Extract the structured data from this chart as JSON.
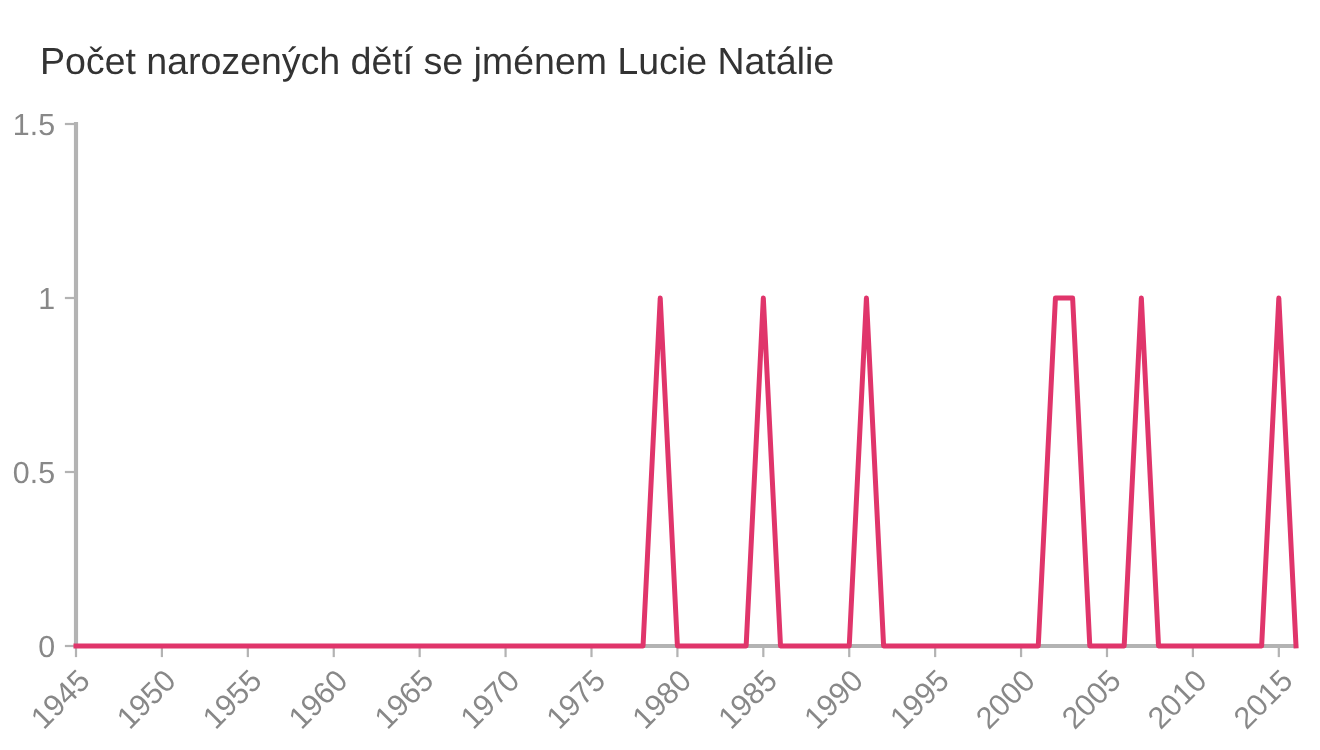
{
  "chart_data": {
    "type": "line",
    "title": "Počet narozených dětí se jménem Lucie Natálie",
    "x": [
      1945,
      1946,
      1947,
      1948,
      1949,
      1950,
      1951,
      1952,
      1953,
      1954,
      1955,
      1956,
      1957,
      1958,
      1959,
      1960,
      1961,
      1962,
      1963,
      1964,
      1965,
      1966,
      1967,
      1968,
      1969,
      1970,
      1971,
      1972,
      1973,
      1974,
      1975,
      1976,
      1977,
      1978,
      1979,
      1980,
      1981,
      1982,
      1983,
      1984,
      1985,
      1986,
      1987,
      1988,
      1989,
      1990,
      1991,
      1992,
      1993,
      1994,
      1995,
      1996,
      1997,
      1998,
      1999,
      2000,
      2001,
      2002,
      2003,
      2004,
      2005,
      2006,
      2007,
      2008,
      2009,
      2010,
      2011,
      2012,
      2013,
      2014,
      2015,
      2016
    ],
    "series": [
      {
        "color": "#e0356b",
        "values": [
          0,
          0,
          0,
          0,
          0,
          0,
          0,
          0,
          0,
          0,
          0,
          0,
          0,
          0,
          0,
          0,
          0,
          0,
          0,
          0,
          0,
          0,
          0,
          0,
          0,
          0,
          0,
          0,
          0,
          0,
          0,
          0,
          0,
          0,
          1,
          0,
          0,
          0,
          0,
          0,
          1,
          0,
          0,
          0,
          0,
          0,
          1,
          0,
          0,
          0,
          0,
          0,
          0,
          0,
          0,
          0,
          0,
          1,
          1,
          0,
          0,
          0,
          1,
          0,
          0,
          0,
          0,
          0,
          0,
          0,
          1,
          0
        ]
      }
    ],
    "xlim": [
      1945,
      2016
    ],
    "xticks": [
      1945,
      1950,
      1955,
      1960,
      1965,
      1970,
      1975,
      1980,
      1985,
      1990,
      1995,
      2000,
      2005,
      2010,
      2015
    ],
    "ylim": [
      0,
      1.5
    ],
    "yticks": [
      0,
      0.5,
      1,
      1.5
    ],
    "grid": false,
    "legend": false,
    "marker": "none",
    "line_style": "solid"
  }
}
